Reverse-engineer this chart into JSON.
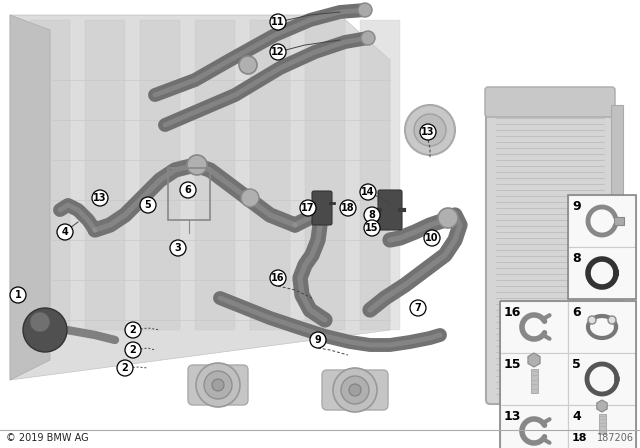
{
  "bg_color": "#ffffff",
  "fig_width": 6.4,
  "fig_height": 4.48,
  "copyright": "© 2019 BMW AG",
  "diagram_number": "187206",
  "engine_color": "#d2d2d2",
  "engine_edge": "#aaaaaa",
  "hose_color": "#808080",
  "hose_dark": "#5a5a5a",
  "hose_light": "#9a9a9a",
  "metal_color": "#b8b8b8",
  "radiator_color": "#d0d0d0",
  "label_bg": "#ffffff",
  "label_edge": "#000000",
  "grid_bg": "#f8f8f8",
  "grid_edge": "#cccccc"
}
